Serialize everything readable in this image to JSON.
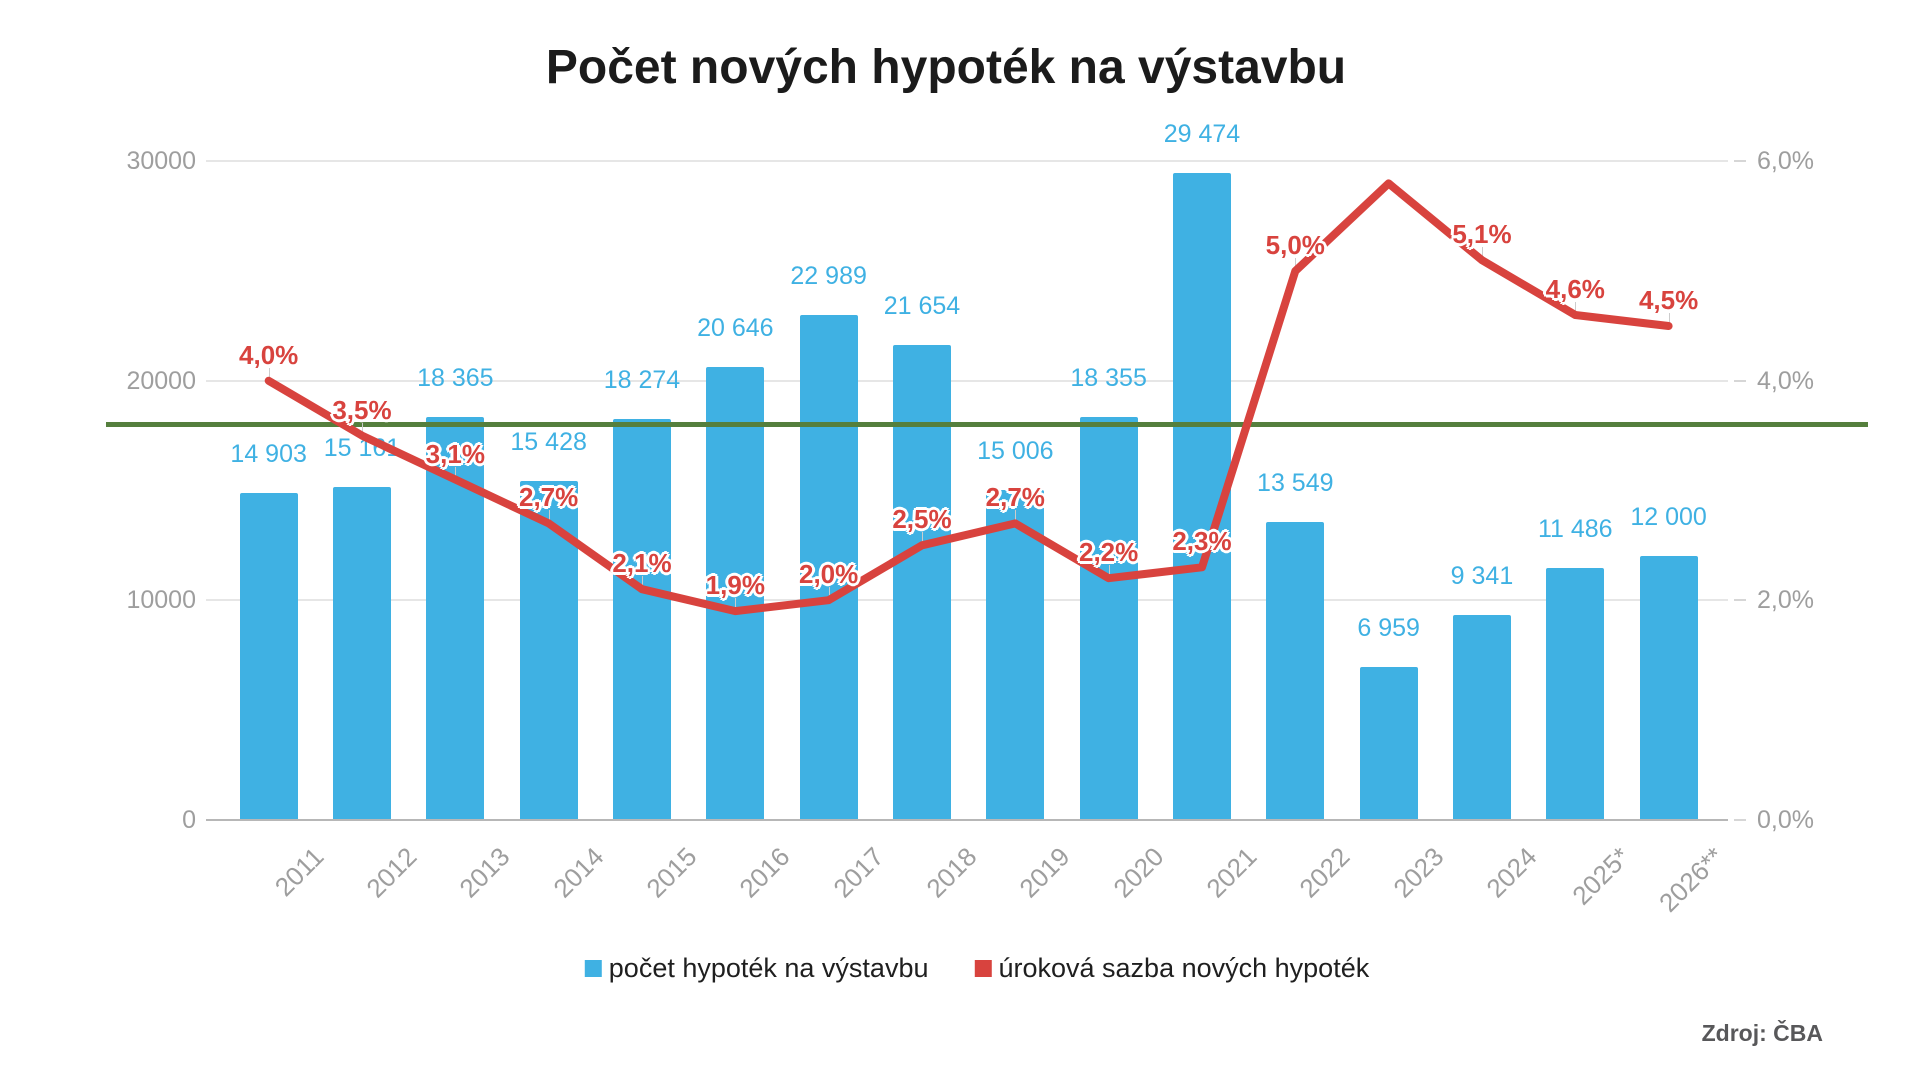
{
  "title": "Počet nových hypoték na výstavbu",
  "source": "Zdroj: ČBA",
  "legend": [
    {
      "label": "počet hypoték na výstavbu",
      "color": "#3fb1e3"
    },
    {
      "label": "úroková sazba nových hypoték",
      "color": "#d8433e"
    }
  ],
  "axes": {
    "left_ticks": [
      "0",
      "10000",
      "20000",
      "30000"
    ],
    "right_ticks": [
      "0,0%",
      "2,0%",
      "4,0%",
      "6,0%"
    ],
    "left_range": [
      0,
      30000
    ],
    "right_range_pct": [
      0,
      6
    ]
  },
  "reference_line": {
    "value": 18000,
    "color": "#557f3d"
  },
  "colors": {
    "bar": "#3fb1e3",
    "bar_label": "#3fb1e3",
    "line": "#d8433e",
    "pct_label": "#d8433e",
    "grid": "#e6e6e6",
    "axis_text": "#9e9e9e"
  },
  "chart_data": {
    "type": "bar+line",
    "title": "Počet nových hypoték na výstavbu",
    "categories": [
      "2011",
      "2012",
      "2013",
      "2014",
      "2015",
      "2016",
      "2017",
      "2018",
      "2019",
      "2020",
      "2021",
      "2022",
      "2023",
      "2024",
      "2025*",
      "2026**"
    ],
    "series": [
      {
        "name": "počet hypoték na výstavbu",
        "type": "bar",
        "axis": "left",
        "color": "#3fb1e3",
        "values": [
          14903,
          15161,
          18365,
          15428,
          18274,
          20646,
          22989,
          21654,
          15006,
          18355,
          29474,
          13549,
          6959,
          9341,
          11486,
          12000
        ],
        "labels": [
          "14 903",
          "15 161",
          "18 365",
          "15 428",
          "18 274",
          "20 646",
          "22 989",
          "21 654",
          "15 006",
          "18 355",
          "29 474",
          "13 549",
          "6 959",
          "9 341",
          "11 486",
          "12 000"
        ]
      },
      {
        "name": "úroková sazba nových hypoték",
        "type": "line",
        "axis": "right",
        "color": "#d8433e",
        "values": [
          4.0,
          3.5,
          3.1,
          2.7,
          2.1,
          1.9,
          2.0,
          2.5,
          2.7,
          2.2,
          2.3,
          5.0,
          5.8,
          5.1,
          4.6,
          4.5
        ],
        "labels": [
          "4,0%",
          "3,5%",
          "3,1%",
          "2,7%",
          "2,1%",
          "1,9%",
          "2,0%",
          "2,5%",
          "2,7%",
          "2,2%",
          "2,3%",
          "5,0%",
          null,
          "5,1%",
          "4,6%",
          "4,5%"
        ]
      }
    ],
    "reference_line_value": 18000,
    "ylim_left": [
      0,
      30000
    ],
    "ylim_right_pct": [
      0,
      6
    ],
    "grid": true,
    "legend_position": "bottom"
  }
}
